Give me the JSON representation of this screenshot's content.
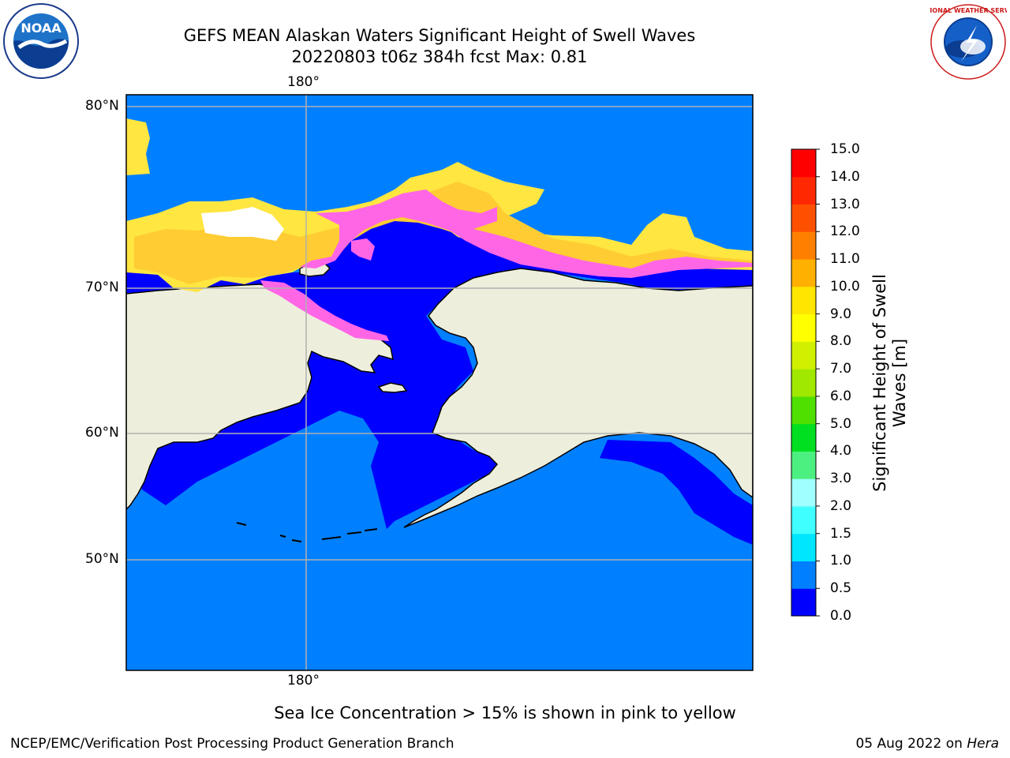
{
  "title": {
    "line1": "GEFS MEAN Alaskan Waters Significant Height of Swell Waves",
    "line2": "20220803 t06z 384h fcst   Max: 0.81"
  },
  "map": {
    "lon_label_top": "180°",
    "lon_label_bottom": "180°",
    "lat_labels": [
      "80°N",
      "70°N",
      "60°N",
      "50°N"
    ],
    "colors": {
      "ocean_low": "#0000ff",
      "ocean_mid": "#0080ff",
      "land": "#eeeedd",
      "ice_pink": "#ff66e6",
      "ice_orange": "#ffcc33",
      "ice_yellow": "#ffe640",
      "grid": "#b0b0b0"
    }
  },
  "colorbar": {
    "label": "Significant Height of Swell Waves [m]",
    "ticks": [
      "0.0",
      "0.5",
      "1.0",
      "1.5",
      "2.0",
      "3.0",
      "4.0",
      "5.0",
      "6.0",
      "7.0",
      "8.0",
      "9.0",
      "10.0",
      "11.0",
      "12.0",
      "13.0",
      "14.0",
      "15.0"
    ],
    "colors": [
      "#0000ff",
      "#0080ff",
      "#00e6ff",
      "#40ffff",
      "#a0ffff",
      "#4cf080",
      "#00e020",
      "#50e000",
      "#a0e800",
      "#d0f000",
      "#ffff00",
      "#ffe600",
      "#ffb000",
      "#ff8000",
      "#ff5000",
      "#ff2800",
      "#ff0000"
    ]
  },
  "logos": {
    "noaa": "NOAA",
    "nws": "NATIONAL WEATHER SERVICE"
  },
  "footer": {
    "note": "Sea Ice Concentration > 15% is shown in pink to yellow",
    "credit": "NCEP/EMC/Verification Post Processing Product Generation Branch",
    "date": "05 Aug 2022 on ",
    "machine": "Hera"
  }
}
